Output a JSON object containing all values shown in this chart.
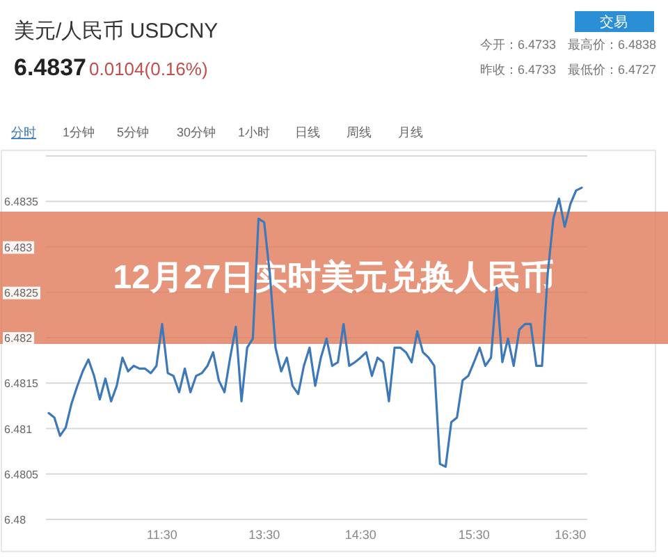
{
  "chart_data": {
    "type": "line",
    "title": "12月27日实时美元兑换人民币",
    "subtitle": "美元/人民币 USDCNY",
    "annotations": [
      "6.4837",
      "0.0104(0.16%)",
      "今开：6.4733",
      "最高价：6.4838",
      "昨收：6.4733",
      "最低价：6.4727",
      "交易",
      "分时",
      "1分钟",
      "5分钟",
      "30分钟",
      "1小时",
      "日线",
      "周线",
      "月线"
    ],
    "categories": [
      null,
      null,
      null,
      null,
      null,
      null,
      null,
      null,
      null,
      null,
      null,
      null,
      null,
      null,
      null,
      null,
      null,
      null,
      null,
      null,
      "11:30",
      null,
      null,
      null,
      null,
      null,
      null,
      null,
      null,
      null,
      null,
      null,
      null,
      null,
      null,
      null,
      null,
      null,
      "13:30",
      null,
      null,
      null,
      null,
      null,
      null,
      null,
      null,
      null,
      null,
      null,
      null,
      null,
      null,
      null,
      null,
      "14:30",
      null,
      null,
      null,
      null,
      null,
      null,
      null,
      null,
      null,
      null,
      null,
      null,
      null,
      null,
      null,
      null,
      null,
      null,
      null,
      "15:30",
      null,
      null,
      null,
      null,
      null,
      null,
      null,
      null,
      null,
      null,
      null,
      null,
      null,
      null,
      null,
      null,
      "16:30",
      null,
      null
    ],
    "ylim": [
      6.48,
      6.484
    ],
    "yticks": [
      6.48,
      6.4805,
      6.481,
      6.4815,
      6.482,
      6.4825,
      6.483,
      6.4835
    ],
    "grid": "y",
    "marker": "none",
    "line_style": "solid",
    "series": [
      {
        "color": "#3d78b8",
        "values": [
          6.48117,
          6.48112,
          6.48092,
          6.48101,
          6.48127,
          6.48146,
          6.48163,
          6.48176,
          6.48158,
          6.48132,
          6.48155,
          6.4813,
          6.48147,
          6.48178,
          6.48163,
          6.48169,
          6.48166,
          6.48166,
          6.48161,
          6.48169,
          6.48215,
          6.48161,
          6.48158,
          6.4814,
          6.48166,
          6.4814,
          6.48158,
          6.48161,
          6.48169,
          6.48184,
          6.48153,
          6.4814,
          6.48178,
          6.48212,
          6.4813,
          6.48189,
          6.48199,
          6.48331,
          6.48327,
          6.4827,
          6.48189,
          6.48163,
          6.48178,
          6.48147,
          6.48138,
          6.48169,
          6.48189,
          6.48147,
          6.48178,
          6.48199,
          6.48169,
          6.48173,
          6.48215,
          6.48169,
          6.48173,
          6.48178,
          6.48184,
          6.48158,
          6.48178,
          6.48173,
          6.4813,
          6.48189,
          6.48189,
          6.48184,
          6.48173,
          6.48207,
          6.48184,
          6.48178,
          6.48169,
          6.48061,
          6.48058,
          6.48107,
          6.48112,
          6.48153,
          6.48158,
          6.48173,
          6.48189,
          6.48169,
          6.48178,
          6.48255,
          6.48173,
          6.48199,
          6.48169,
          6.48209,
          6.48215,
          6.48215,
          6.48169,
          6.48169,
          6.4827,
          6.48331,
          6.48353,
          6.48322,
          6.48347,
          6.48362,
          6.48365
        ]
      }
    ]
  }
}
